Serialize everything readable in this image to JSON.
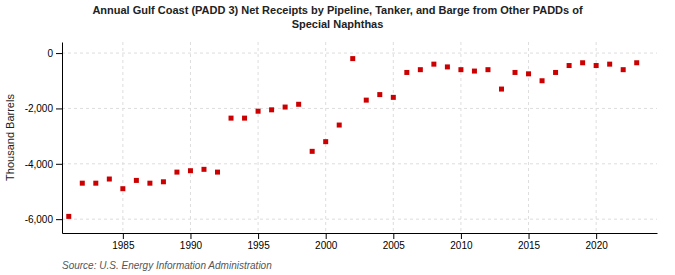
{
  "chart_data": {
    "type": "scatter",
    "title": "Annual Gulf Coast (PADD 3) Net Receipts by Pipeline, Tanker, and Barge from Other PADDs of",
    "subtitle": "Special Naphthas",
    "y_label": "Thousand Barrels",
    "source": "Source: U.S. Energy Information Administration",
    "color": "#cc0000",
    "marker": "square",
    "x": [
      1981,
      1982,
      1983,
      1984,
      1985,
      1986,
      1987,
      1988,
      1989,
      1990,
      1991,
      1992,
      1993,
      1994,
      1995,
      1996,
      1997,
      1998,
      1999,
      2000,
      2001,
      2002,
      2003,
      2004,
      2005,
      2006,
      2007,
      2008,
      2009,
      2010,
      2011,
      2012,
      2013,
      2014,
      2015,
      2016,
      2017,
      2018,
      2019,
      2020,
      2021,
      2022,
      2023
    ],
    "values": [
      -5900,
      -4700,
      -4700,
      -4550,
      -4900,
      -4600,
      -4700,
      -4650,
      -4300,
      -4250,
      -4200,
      -4300,
      -2350,
      -2350,
      -2100,
      -2050,
      -1950,
      -1850,
      -3550,
      -3200,
      -2600,
      -200,
      -1700,
      -1500,
      -1600,
      -700,
      -600,
      -400,
      -500,
      -600,
      -650,
      -600,
      -1300,
      -700,
      -750,
      -1000,
      -700,
      -450,
      -350,
      -450,
      -400,
      -600,
      -350
    ],
    "xlim": [
      1980.5,
      2024.5
    ],
    "xticks": [
      1985,
      1990,
      1995,
      2000,
      2005,
      2010,
      2015,
      2020
    ],
    "ylim": [
      -6500,
      400
    ],
    "yticks": [
      0,
      {
        "value": -2000,
        "label": "-2,000"
      },
      {
        "value": -4000,
        "label": "-4,000"
      },
      {
        "value": -6000,
        "label": "-6,000"
      }
    ],
    "grid": true
  }
}
